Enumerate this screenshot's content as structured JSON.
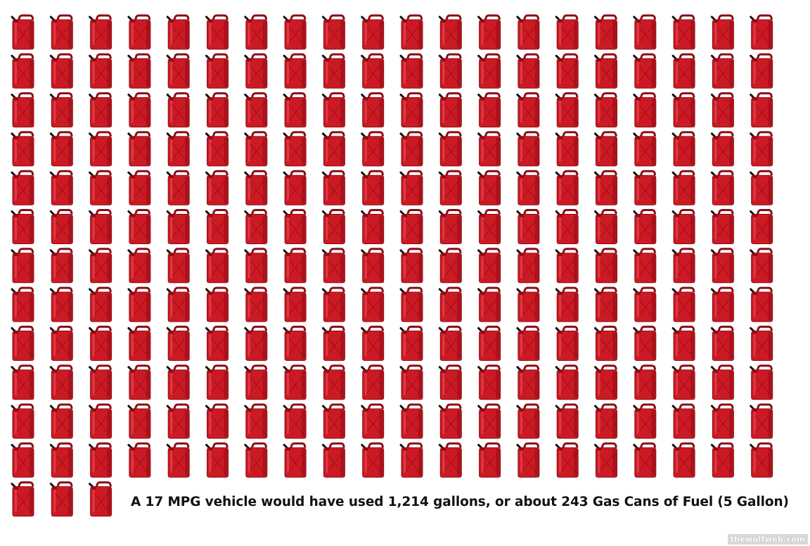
{
  "caption": "A 17 MPG vehicle would have used 1,214 gallons, or about 243 Gas Cans of Fuel (5 Gallon)",
  "watermark": "thewolfweb.com",
  "gas_can_count": 243,
  "gas_can_icon": "gas-can-icon",
  "colors": {
    "can_body": "#cc1a24",
    "can_dark": "#8e0c14",
    "can_highlight": "#e8505a",
    "spout": "#111111",
    "caption_text": "#111111"
  }
}
